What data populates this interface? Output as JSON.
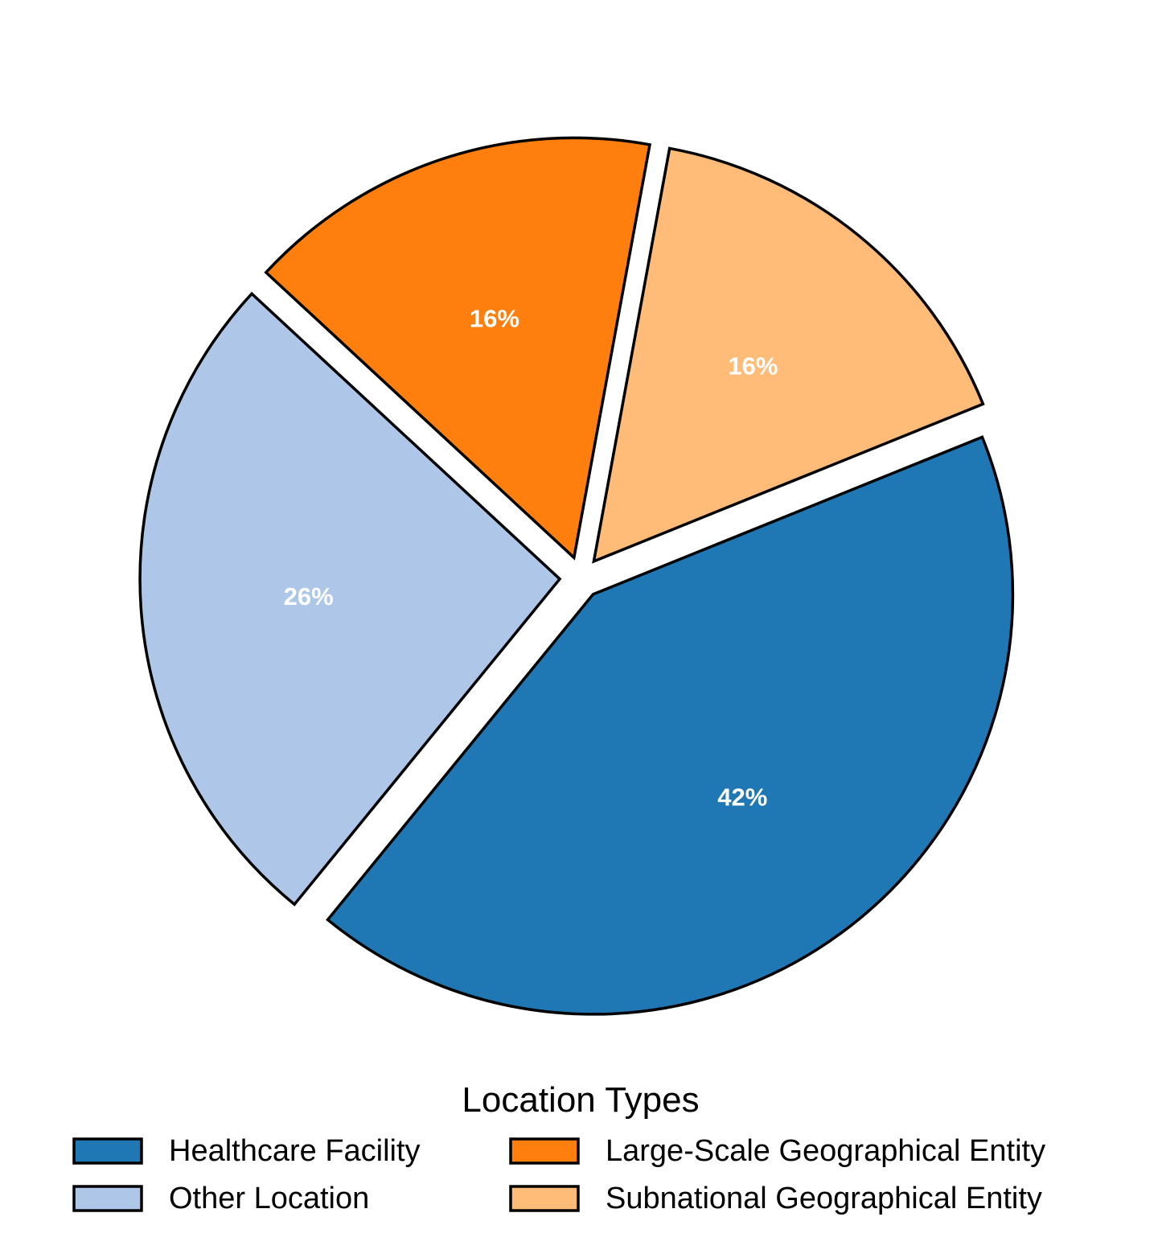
{
  "chart_data": {
    "type": "pie",
    "title": "",
    "legend_title": "Location Types",
    "legend_position": "bottom",
    "slices": [
      {
        "label": "Healthcare Facility",
        "value": 42,
        "display": "42%",
        "color": "#1f77b4"
      },
      {
        "label": "Other Location",
        "value": 26,
        "display": "26%",
        "color": "#aec7e8"
      },
      {
        "label": "Large-Scale Geographical Entity",
        "value": 16,
        "display": "16%",
        "color": "#ff7f0e"
      },
      {
        "label": "Subnational Geographical Entity",
        "value": 16,
        "display": "16%",
        "color": "#ffbb78"
      }
    ]
  }
}
